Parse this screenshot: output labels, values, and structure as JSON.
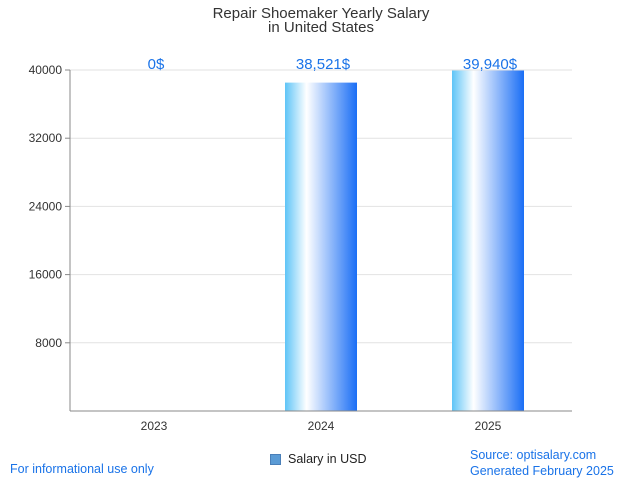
{
  "chart_data": {
    "type": "bar",
    "title_lines": [
      "Repair Shoemaker Yearly Salary",
      "in United States"
    ],
    "categories": [
      "2023",
      "2024",
      "2025"
    ],
    "series": [
      {
        "name": "Salary in USD",
        "values": [
          0,
          38521,
          39940
        ]
      }
    ],
    "data_labels": [
      "0$",
      "38,521$",
      "39,940$"
    ],
    "y_ticks": [
      "8000",
      "16000",
      "24000",
      "32000",
      "40000"
    ],
    "ylim": [
      0,
      40000
    ],
    "grid": true,
    "legend_position": "bottom-center",
    "colors": {
      "bar_dark": "#1a6ef5",
      "bar_light": "#ffffff",
      "bar_mid": "#5ec4f7",
      "label": "#1a73e8"
    }
  },
  "footer": {
    "disclaimer": "For informational use only",
    "source": "Source: optisalary.com",
    "generated": "Generated February 2025"
  }
}
